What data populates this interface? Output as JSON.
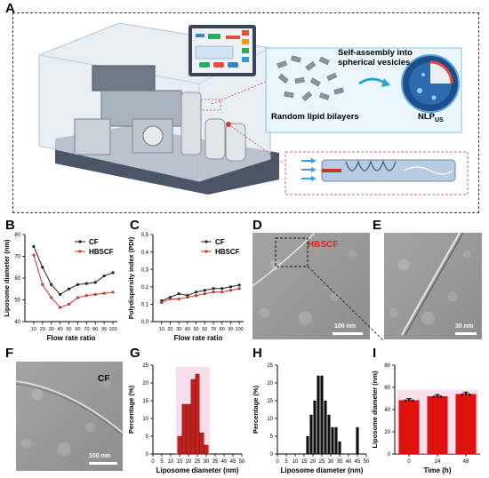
{
  "panels": {
    "A": "A",
    "B": "B",
    "C": "C",
    "D": "D",
    "E": "E",
    "F": "F",
    "G": "G",
    "H": "H",
    "I": "I"
  },
  "schematic": {
    "self_assembly_label": "Self-assembly into spherical vesicles",
    "random_bilayers_label": "Random lipid bilayers",
    "nlp_label": "NLP",
    "nlp_subscript": "US"
  },
  "micrographs": {
    "D": {
      "label": "HBSCF",
      "scale": "100 nm",
      "label_color": "#e8251f"
    },
    "E": {
      "scale": "30 nm"
    },
    "F": {
      "label": "CF",
      "scale": "100 nm"
    }
  },
  "chart_data": [
    {
      "panel": "B",
      "type": "line",
      "xlabel": "Flow rate ratio",
      "ylabel": "Liposome diameter (nm)",
      "x": [
        10,
        20,
        30,
        40,
        50,
        60,
        70,
        80,
        90,
        100
      ],
      "xlim": [
        0,
        105
      ],
      "ylim": [
        40,
        80
      ],
      "xticks": [
        "10",
        "20",
        "30",
        "40",
        "50",
        "60",
        "70",
        "80",
        "90",
        "100"
      ],
      "yticks": [
        "40",
        "50",
        "60",
        "70",
        "80"
      ],
      "legend": "top-right",
      "series": [
        {
          "name": "CF",
          "color": "#222222",
          "values": [
            74.5,
            65,
            57,
            52.5,
            55,
            57,
            57.5,
            58,
            61,
            62.5
          ]
        },
        {
          "name": "HBSCF",
          "color": "#c0392b",
          "values": [
            70.5,
            57,
            51,
            46.5,
            48,
            51,
            52,
            52.5,
            53,
            53.5
          ]
        }
      ]
    },
    {
      "panel": "C",
      "type": "line",
      "xlabel": "Flow rate ratio",
      "ylabel": "Polydispersity index (PDI)",
      "x": [
        10,
        20,
        30,
        40,
        50,
        60,
        70,
        80,
        90,
        100
      ],
      "xlim": [
        0,
        105
      ],
      "ylim": [
        0.0,
        0.5
      ],
      "xticks": [
        "10",
        "20",
        "30",
        "40",
        "50",
        "60",
        "70",
        "80",
        "90",
        "100"
      ],
      "yticks": [
        "0.0",
        "0.1",
        "0.2",
        "0.3",
        "0.4",
        "0.5"
      ],
      "legend": "top-right",
      "series": [
        {
          "name": "CF",
          "color": "#222222",
          "values": [
            0.12,
            0.14,
            0.16,
            0.15,
            0.17,
            0.18,
            0.19,
            0.19,
            0.2,
            0.21
          ]
        },
        {
          "name": "HBSCF",
          "color": "#c0392b",
          "values": [
            0.11,
            0.13,
            0.13,
            0.14,
            0.15,
            0.16,
            0.17,
            0.17,
            0.18,
            0.19
          ]
        }
      ]
    },
    {
      "panel": "G",
      "type": "bar",
      "xlabel": "Liposome diameter (nm)",
      "ylabel": "Percentage (%)",
      "xlim": [
        0,
        50
      ],
      "ylim": [
        0,
        25
      ],
      "xticks": [
        "0",
        "5",
        "10",
        "15",
        "20",
        "25",
        "30",
        "35",
        "40",
        "45",
        "50"
      ],
      "yticks": [
        "0",
        "5",
        "10",
        "15",
        "20",
        "25"
      ],
      "x": [
        15,
        17.5,
        20,
        22.5,
        25,
        27.5,
        30
      ],
      "values": [
        5,
        14,
        14,
        21,
        22.5,
        6,
        2.5
      ],
      "bar_color": "#c0211c",
      "glow_color": "#f3c6dd"
    },
    {
      "panel": "H",
      "type": "bar",
      "xlabel": "Liposome diameter (nm)",
      "ylabel": "Percentage (%)",
      "xlim": [
        0,
        50
      ],
      "ylim": [
        0,
        25
      ],
      "xticks": [
        "0",
        "5",
        "10",
        "15",
        "20",
        "25",
        "30",
        "35",
        "40",
        "45",
        "50"
      ],
      "yticks": [
        "0",
        "5",
        "10",
        "15",
        "20",
        "25"
      ],
      "x": [
        17,
        19,
        21,
        23,
        25,
        27,
        29,
        31,
        33,
        35,
        45
      ],
      "values": [
        5,
        11,
        15,
        22,
        22,
        15,
        11,
        7.5,
        7.5,
        3.5,
        7.5
      ],
      "bar_color": "#111111"
    },
    {
      "panel": "I",
      "type": "bar",
      "xlabel": "Time (h)",
      "ylabel": "Liposome diameter (nm)",
      "ylim": [
        0,
        80
      ],
      "yticks": [
        "0",
        "20",
        "40",
        "60",
        "80"
      ],
      "categories": [
        "0",
        "24",
        "48"
      ],
      "values": [
        48.5,
        52,
        54
      ],
      "errors": [
        1.5,
        1.5,
        1.8
      ],
      "bar_color": "#e0120f",
      "glow_color": "#f3c6dd"
    }
  ]
}
